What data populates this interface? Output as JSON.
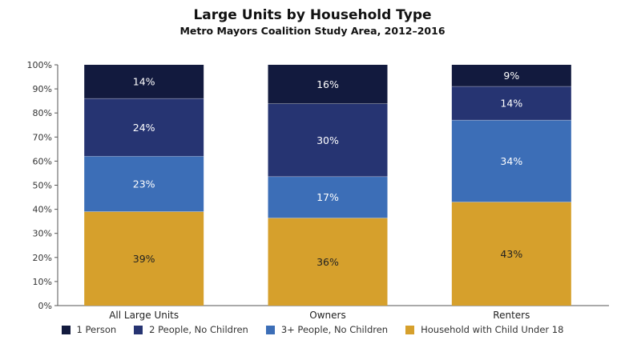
{
  "chart_data": {
    "type": "bar",
    "stacked": true,
    "title": "Large Units by Household Type",
    "subtitle": "Metro Mayors Coalition Study Area, 2012–2016",
    "categories": [
      "All Large Units",
      "Owners",
      "Renters"
    ],
    "series": [
      {
        "name": "Household with Child Under 18",
        "values": [
          39,
          36,
          43
        ],
        "labels": [
          "39%",
          "36%",
          "43%"
        ],
        "color": "#D6A02C",
        "label_color": "#222222"
      },
      {
        "name": "3+ People, No Children",
        "values": [
          23,
          17,
          34
        ],
        "labels": [
          "23%",
          "17%",
          "34%"
        ],
        "color": "#3C6EB7",
        "label_color": "#FFFFFF"
      },
      {
        "name": "2 People, No Children",
        "values": [
          24,
          30,
          14
        ],
        "labels": [
          "24%",
          "30%",
          "14%"
        ],
        "color": "#263472",
        "label_color": "#FFFFFF"
      },
      {
        "name": "1 Person",
        "values": [
          14,
          16,
          9
        ],
        "labels": [
          "14%",
          "16%",
          "9%"
        ],
        "color": "#121A3E",
        "label_color": "#FFFFFF"
      }
    ],
    "legend_order": [
      "1 Person",
      "2 People, No Children",
      "3+ People, No Children",
      "Household with Child Under 18"
    ],
    "y_ticks": [
      "0%",
      "10%",
      "20%",
      "30%",
      "40%",
      "50%",
      "60%",
      "70%",
      "80%",
      "90%",
      "100%"
    ],
    "ylim": [
      0,
      100
    ],
    "xlabel": "",
    "ylabel": "",
    "grid": false,
    "legend_position": "bottom"
  }
}
